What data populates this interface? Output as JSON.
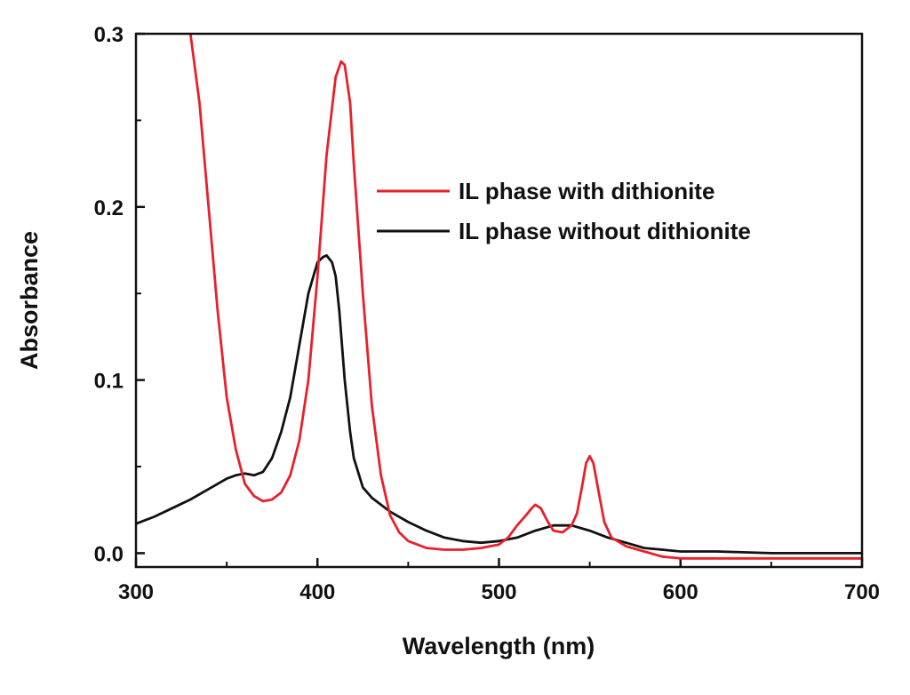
{
  "chart_data": {
    "type": "line",
    "title": "",
    "xlabel": "Wavelength (nm)",
    "ylabel": "Absorbance",
    "xlim": [
      300,
      700
    ],
    "ylim": [
      -0.008,
      0.3
    ],
    "x_ticks": [
      {
        "value": 300,
        "label": "300"
      },
      {
        "value": 400,
        "label": "400"
      },
      {
        "value": 500,
        "label": "500"
      },
      {
        "value": 600,
        "label": "600"
      },
      {
        "value": 700,
        "label": "700"
      }
    ],
    "y_ticks": [
      {
        "value": 0.0,
        "label": "0.0"
      },
      {
        "value": 0.1,
        "label": "0.1"
      },
      {
        "value": 0.2,
        "label": "0.2"
      },
      {
        "value": 0.3,
        "label": "0.3"
      }
    ],
    "legend_position": "upper-right",
    "series": [
      {
        "name": "IL phase with dithionite",
        "color": "#e8202a",
        "x": [
          330,
          335,
          340,
          345,
          350,
          355,
          360,
          365,
          370,
          375,
          380,
          385,
          390,
          395,
          400,
          405,
          410,
          413,
          415,
          418,
          420,
          425,
          430,
          435,
          440,
          445,
          450,
          460,
          470,
          480,
          490,
          500,
          505,
          510,
          515,
          518,
          520,
          523,
          527,
          530,
          535,
          540,
          543,
          546,
          548,
          550,
          552,
          555,
          558,
          562,
          570,
          580,
          590,
          600,
          620,
          650,
          680,
          700
        ],
        "values": [
          0.3,
          0.26,
          0.2,
          0.14,
          0.09,
          0.06,
          0.04,
          0.033,
          0.03,
          0.031,
          0.035,
          0.045,
          0.065,
          0.1,
          0.16,
          0.23,
          0.275,
          0.284,
          0.282,
          0.26,
          0.225,
          0.15,
          0.085,
          0.045,
          0.022,
          0.012,
          0.007,
          0.003,
          0.002,
          0.002,
          0.003,
          0.005,
          0.009,
          0.016,
          0.022,
          0.026,
          0.028,
          0.026,
          0.018,
          0.013,
          0.012,
          0.016,
          0.023,
          0.04,
          0.052,
          0.056,
          0.052,
          0.035,
          0.018,
          0.009,
          0.004,
          0.001,
          -0.002,
          -0.003,
          -0.003,
          -0.003,
          -0.003,
          -0.003
        ]
      },
      {
        "name": "IL phase without dithionite",
        "color": "#111111",
        "x": [
          300,
          310,
          320,
          330,
          340,
          350,
          355,
          360,
          365,
          370,
          375,
          380,
          385,
          390,
          395,
          400,
          403,
          405,
          408,
          410,
          412,
          415,
          418,
          420,
          425,
          430,
          440,
          450,
          460,
          470,
          480,
          490,
          500,
          510,
          520,
          530,
          540,
          550,
          560,
          570,
          580,
          590,
          600,
          620,
          650,
          680,
          700
        ],
        "values": [
          0.017,
          0.021,
          0.026,
          0.031,
          0.037,
          0.043,
          0.045,
          0.046,
          0.045,
          0.047,
          0.055,
          0.07,
          0.09,
          0.12,
          0.15,
          0.168,
          0.171,
          0.172,
          0.168,
          0.16,
          0.14,
          0.1,
          0.07,
          0.055,
          0.038,
          0.032,
          0.024,
          0.018,
          0.013,
          0.009,
          0.007,
          0.006,
          0.007,
          0.009,
          0.013,
          0.016,
          0.016,
          0.013,
          0.009,
          0.006,
          0.003,
          0.002,
          0.001,
          0.001,
          0.0,
          0.0,
          0.0
        ]
      }
    ]
  }
}
